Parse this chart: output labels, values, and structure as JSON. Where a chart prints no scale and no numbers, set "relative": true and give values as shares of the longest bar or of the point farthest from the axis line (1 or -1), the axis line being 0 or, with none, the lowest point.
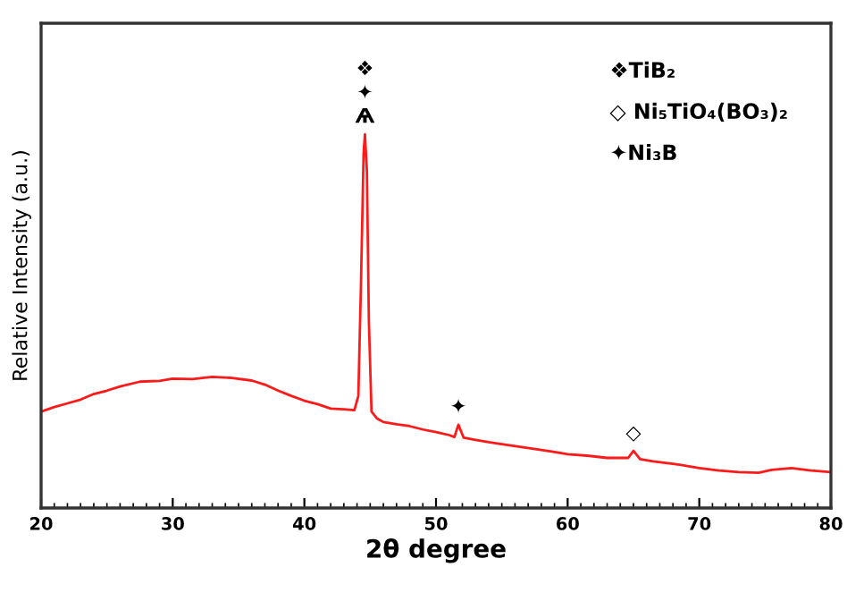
{
  "chart_data": {
    "type": "line",
    "relative": true,
    "xlabel": "2θ degree",
    "ylabel": "Relative Intensity (a.u.)",
    "xlim": [
      20,
      80
    ],
    "xticks": [
      20,
      30,
      40,
      50,
      60,
      70,
      80
    ],
    "grid": false,
    "marker": "none",
    "line_style": "solid",
    "series": [
      {
        "color": "#ff1a1a",
        "x": [
          20,
          21,
          22,
          23,
          24,
          25,
          26,
          27.5,
          29,
          30,
          31.5,
          33,
          34.5,
          36,
          37,
          38,
          39,
          40,
          41,
          42,
          43,
          43.8,
          44.1,
          44.3,
          44.5,
          44.6,
          44.75,
          44.9,
          45.1,
          45.5,
          46,
          47,
          48,
          49,
          50,
          51,
          51.4,
          51.7,
          52.1,
          53,
          54,
          55,
          56.5,
          58,
          59,
          60,
          61.5,
          63,
          64.6,
          65,
          65.5,
          66.5,
          68,
          69,
          70,
          71.5,
          73,
          74.5,
          75.5,
          77,
          78.5,
          80
        ],
        "values": [
          0.258,
          0.27,
          0.28,
          0.29,
          0.305,
          0.314,
          0.325,
          0.338,
          0.34,
          0.346,
          0.345,
          0.351,
          0.348,
          0.341,
          0.33,
          0.314,
          0.3,
          0.287,
          0.278,
          0.266,
          0.264,
          0.262,
          0.3,
          0.6,
          0.95,
          1.0,
          0.9,
          0.5,
          0.258,
          0.24,
          0.23,
          0.224,
          0.219,
          0.21,
          0.203,
          0.195,
          0.19,
          0.223,
          0.188,
          0.182,
          0.176,
          0.171,
          0.163,
          0.155,
          0.15,
          0.144,
          0.14,
          0.134,
          0.134,
          0.153,
          0.131,
          0.125,
          0.118,
          0.113,
          0.107,
          0.1,
          0.096,
          0.094,
          0.102,
          0.107,
          0.1,
          0.096
        ]
      }
    ],
    "annotations": [
      {
        "text": "❖\n✦\nѦ",
        "x": 44.6,
        "y": 1.0
      },
      {
        "text": "✦",
        "x": 51.7,
        "y": 0.223
      },
      {
        "text": "◇",
        "x": 65,
        "y": 0.153
      },
      "❖TiB₂",
      "◇ Ni₅TiO₄(BO₃)₂",
      "✦Ni₃B"
    ]
  }
}
